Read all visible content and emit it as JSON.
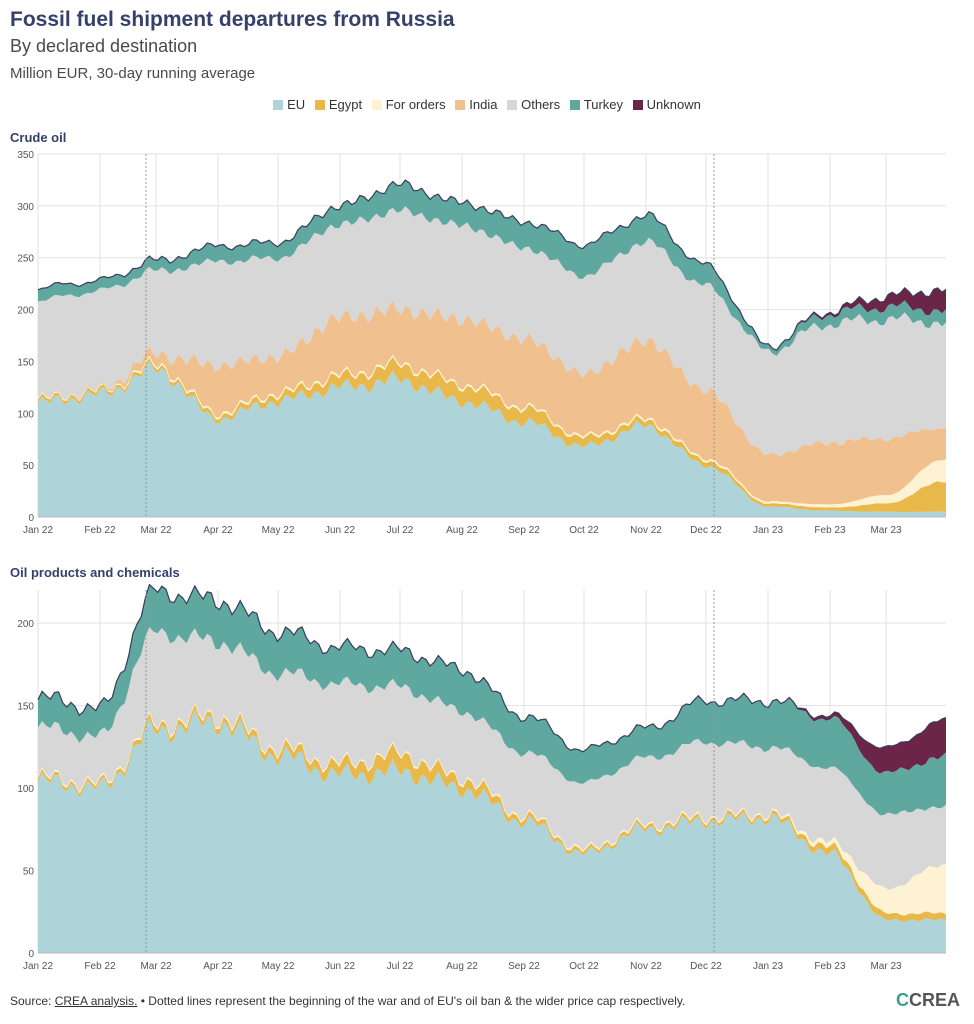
{
  "title": "Fossil fuel shipment departures from Russia",
  "subtitle": "By declared destination",
  "unit": "Million EUR, 30-day running average",
  "colors": {
    "EU": "#aed3d8",
    "Egypt": "#e8b94a",
    "For orders": "#fdf3d2",
    "India": "#f0c08f",
    "Others": "#d7d7d7",
    "Turkey": "#5fa8a0",
    "Unknown": "#6b2548",
    "grid": "#e2e2e2",
    "dotted": "#999999",
    "outline": "#3b3b5a"
  },
  "legend": [
    "EU",
    "Egypt",
    "For orders",
    "India",
    "Others",
    "Turkey",
    "Unknown"
  ],
  "x_labels": [
    "Jan 22",
    "Feb 22",
    "Mar 22",
    "Apr 22",
    "May 22",
    "Jun 22",
    "Jul 22",
    "Aug 22",
    "Sep 22",
    "Oct 22",
    "Nov 22",
    "Dec 22",
    "Jan 23",
    "Feb 23",
    "Mar 23"
  ],
  "chart_data": [
    {
      "type": "area",
      "title": "Crude oil",
      "stacked": true,
      "x": [
        "2022-01-01",
        "2022-02-01",
        "2022-03-01",
        "2022-04-01",
        "2022-05-01",
        "2022-06-01",
        "2022-07-01",
        "2022-08-01",
        "2022-09-01",
        "2022-10-01",
        "2022-11-01",
        "2022-12-01",
        "2023-01-01",
        "2023-02-01",
        "2023-03-01",
        "2023-03-31"
      ],
      "xlim": [
        "2022-01-01",
        "2023-03-31"
      ],
      "ylim": [
        0,
        350
      ],
      "yticks": [
        0,
        50,
        100,
        150,
        200,
        250,
        300,
        350
      ],
      "vlines": [
        "2022-02-24",
        "2022-12-05"
      ],
      "series": [
        {
          "name": "EU",
          "values": [
            110,
            118,
            142,
            95,
            112,
            125,
            132,
            112,
            92,
            68,
            88,
            50,
            10,
            6,
            5,
            5
          ]
        },
        {
          "name": "Egypt",
          "values": [
            3,
            3,
            3,
            4,
            6,
            10,
            14,
            15,
            13,
            8,
            5,
            5,
            3,
            3,
            8,
            30
          ]
        },
        {
          "name": "For orders",
          "values": [
            1,
            1,
            2,
            2,
            2,
            2,
            2,
            2,
            2,
            2,
            2,
            2,
            2,
            3,
            8,
            22
          ]
        },
        {
          "name": "India",
          "values": [
            0,
            1,
            10,
            45,
            35,
            55,
            52,
            62,
            65,
            60,
            75,
            65,
            45,
            60,
            55,
            30
          ]
        },
        {
          "name": "Others",
          "values": [
            95,
            95,
            80,
            100,
            95,
            90,
            95,
            90,
            88,
            95,
            95,
            100,
            100,
            115,
            115,
            100
          ]
        },
        {
          "name": "Turkey",
          "values": [
            12,
            10,
            10,
            15,
            15,
            18,
            25,
            22,
            25,
            30,
            25,
            20,
            5,
            10,
            12,
            12
          ]
        },
        {
          "name": "Unknown",
          "values": [
            0,
            0,
            0,
            0,
            0,
            0,
            0,
            0,
            0,
            0,
            0,
            0,
            0,
            2,
            10,
            20
          ]
        }
      ]
    },
    {
      "type": "area",
      "title": "Oil products and chemicals",
      "stacked": true,
      "x": [
        "2022-01-01",
        "2022-02-01",
        "2022-03-01",
        "2022-04-01",
        "2022-05-01",
        "2022-06-01",
        "2022-07-01",
        "2022-08-01",
        "2022-09-01",
        "2022-10-01",
        "2022-11-01",
        "2022-12-01",
        "2023-01-01",
        "2023-02-01",
        "2023-03-01",
        "2023-03-31"
      ],
      "xlim": [
        "2022-01-01",
        "2023-03-31"
      ],
      "ylim": [
        0,
        220
      ],
      "yticks": [
        0,
        50,
        100,
        150,
        200
      ],
      "vlines": [
        "2022-02-24",
        "2022-12-05"
      ],
      "series": [
        {
          "name": "EU",
          "values": [
            104,
            100,
            135,
            140,
            120,
            108,
            110,
            100,
            80,
            60,
            75,
            80,
            82,
            60,
            20,
            20
          ]
        },
        {
          "name": "Egypt",
          "values": [
            2,
            2,
            3,
            3,
            4,
            6,
            10,
            6,
            3,
            2,
            2,
            2,
            2,
            4,
            4,
            4
          ]
        },
        {
          "name": "For orders",
          "values": [
            1,
            1,
            1,
            1,
            1,
            1,
            1,
            1,
            1,
            1,
            1,
            1,
            1,
            3,
            15,
            30
          ]
        },
        {
          "name": "India",
          "values": [
            0,
            0,
            0,
            0,
            0,
            0,
            0,
            0,
            0,
            0,
            0,
            0,
            0,
            0,
            0,
            0
          ]
        },
        {
          "name": "Others",
          "values": [
            30,
            28,
            55,
            45,
            45,
            48,
            40,
            40,
            38,
            40,
            40,
            45,
            40,
            45,
            45,
            35
          ]
        },
        {
          "name": "Turkey",
          "values": [
            18,
            17,
            25,
            25,
            25,
            22,
            22,
            25,
            22,
            20,
            18,
            25,
            28,
            30,
            25,
            30
          ]
        },
        {
          "name": "Unknown",
          "values": [
            0,
            0,
            0,
            0,
            0,
            0,
            0,
            0,
            0,
            0,
            0,
            0,
            0,
            2,
            15,
            22
          ]
        }
      ]
    }
  ],
  "source": {
    "prefix": "Source: ",
    "link": "CREA analysis.",
    "note": " • Dotted lines represent the beginning of the war and of EU's oil ban & the wider price cap respectively."
  },
  "logo": {
    "mark": "C",
    "text": "CREA"
  }
}
